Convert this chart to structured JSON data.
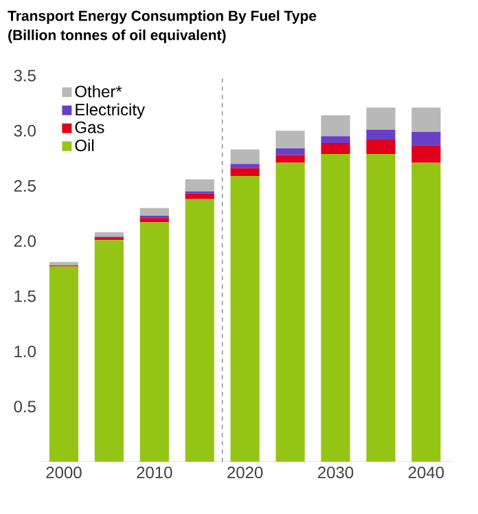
{
  "chart_data": {
    "type": "bar",
    "stacked": true,
    "title": "Transport Energy Consumption By Fuel Type",
    "subtitle": "(Billion tonnes of oil equivalent)",
    "x": [
      2000,
      2005,
      2010,
      2015,
      2020,
      2025,
      2030,
      2035,
      2040
    ],
    "series": [
      {
        "name": "Oil",
        "color": "#95c514",
        "values": [
          1.77,
          2.01,
          2.17,
          2.38,
          2.59,
          2.71,
          2.79,
          2.79,
          2.71
        ]
      },
      {
        "name": "Gas",
        "color": "#e0001b",
        "values": [
          0.01,
          0.02,
          0.04,
          0.05,
          0.07,
          0.07,
          0.1,
          0.13,
          0.16
        ]
      },
      {
        "name": "Electricity",
        "color": "#6a3fc8",
        "values": [
          0.0,
          0.01,
          0.02,
          0.02,
          0.04,
          0.06,
          0.06,
          0.09,
          0.12
        ]
      },
      {
        "name": "Other*",
        "color": "#b8b8b8",
        "values": [
          0.03,
          0.04,
          0.07,
          0.11,
          0.13,
          0.16,
          0.19,
          0.2,
          0.22
        ]
      }
    ],
    "xlim": [
      1997.5,
      2043
    ],
    "xticks": [
      2000,
      2010,
      2020,
      2030,
      2040
    ],
    "ylim": [
      0,
      3.5
    ],
    "yticks": [
      0.5,
      {
        "value": 1,
        "label": "1.0"
      },
      1.5,
      {
        "value": 2,
        "label": "2.0"
      },
      2.5,
      {
        "value": 3,
        "label": "3.0"
      },
      3.5
    ],
    "ref_lines": [
      {
        "axis": "x",
        "value": 2017.5,
        "color": "#9a8fb0",
        "line_style": "dashed"
      }
    ],
    "legend": "top left",
    "grid": false
  }
}
